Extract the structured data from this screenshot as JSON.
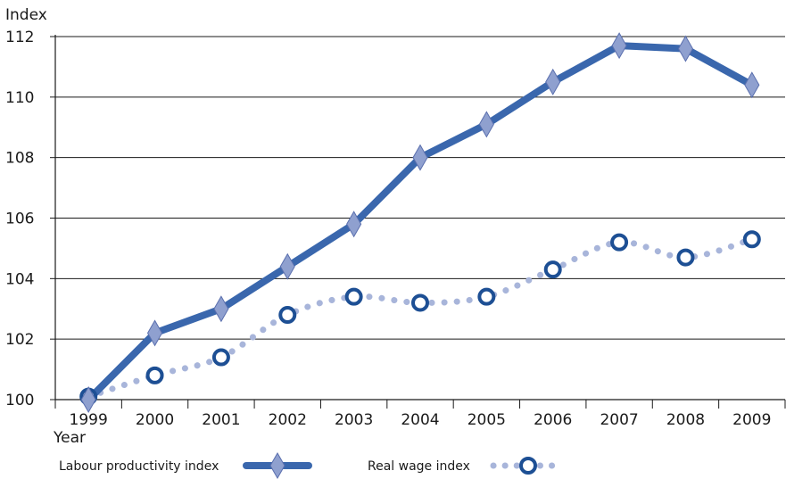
{
  "chart_data": {
    "type": "line",
    "ylabel": "Index",
    "xlabel": "Year",
    "ylim": [
      100,
      112
    ],
    "y_ticks": [
      "100",
      "102",
      "104",
      "106",
      "108",
      "110",
      "112"
    ],
    "categories": [
      "1999",
      "2000",
      "2001",
      "2002",
      "2003",
      "2004",
      "2005",
      "2006",
      "2007",
      "2008",
      "2009"
    ],
    "grid": "horizontal",
    "legend_position": "bottom",
    "series": [
      {
        "name": "Labour productivity index",
        "color": "#3a67ad",
        "marker": "diamond",
        "marker_color": "#8fa0cf",
        "line_style": "solid",
        "values": [
          100.0,
          102.2,
          103.0,
          104.4,
          105.8,
          108.0,
          109.1,
          110.5,
          111.7,
          111.6,
          110.4
        ]
      },
      {
        "name": "Real wage index",
        "color": "#a8b5da",
        "marker": "circle",
        "marker_color": "#1d4f94",
        "line_style": "dotted",
        "values": [
          100.1,
          100.8,
          101.4,
          102.8,
          103.4,
          103.2,
          103.4,
          104.3,
          105.2,
          104.7,
          105.3
        ]
      }
    ]
  }
}
